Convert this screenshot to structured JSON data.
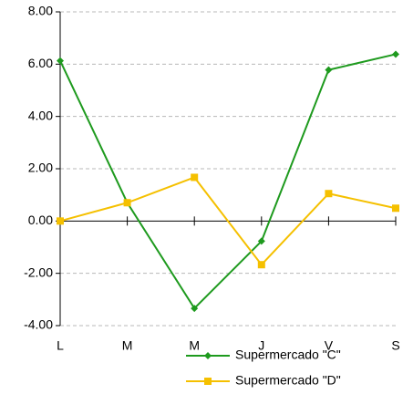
{
  "chart_data": {
    "type": "line",
    "categories": [
      "L",
      "M",
      "M",
      "J",
      "V",
      "S"
    ],
    "series": [
      {
        "name": "Supermercado \"C\"",
        "color": "#1e9a1e",
        "marker": "diamond",
        "values": [
          6.13,
          0.7,
          -3.34,
          -0.77,
          5.78,
          6.38
        ]
      },
      {
        "name": "Supermercado \"D\"",
        "color": "#f5c000",
        "marker": "square",
        "values": [
          0,
          0.7,
          1.67,
          -1.67,
          1.05,
          0.49
        ]
      }
    ],
    "ylim": [
      -4,
      8
    ],
    "yticks": [
      {
        "value": -4,
        "label": "-4.00"
      },
      {
        "value": -2,
        "label": "-2.00"
      },
      {
        "value": 0,
        "label": "0.00"
      },
      {
        "value": 2,
        "label": "2.00"
      },
      {
        "value": 4,
        "label": "4.00"
      },
      {
        "value": 6,
        "label": "6.00"
      },
      {
        "value": 8,
        "label": "8.00"
      }
    ],
    "grid": true
  }
}
